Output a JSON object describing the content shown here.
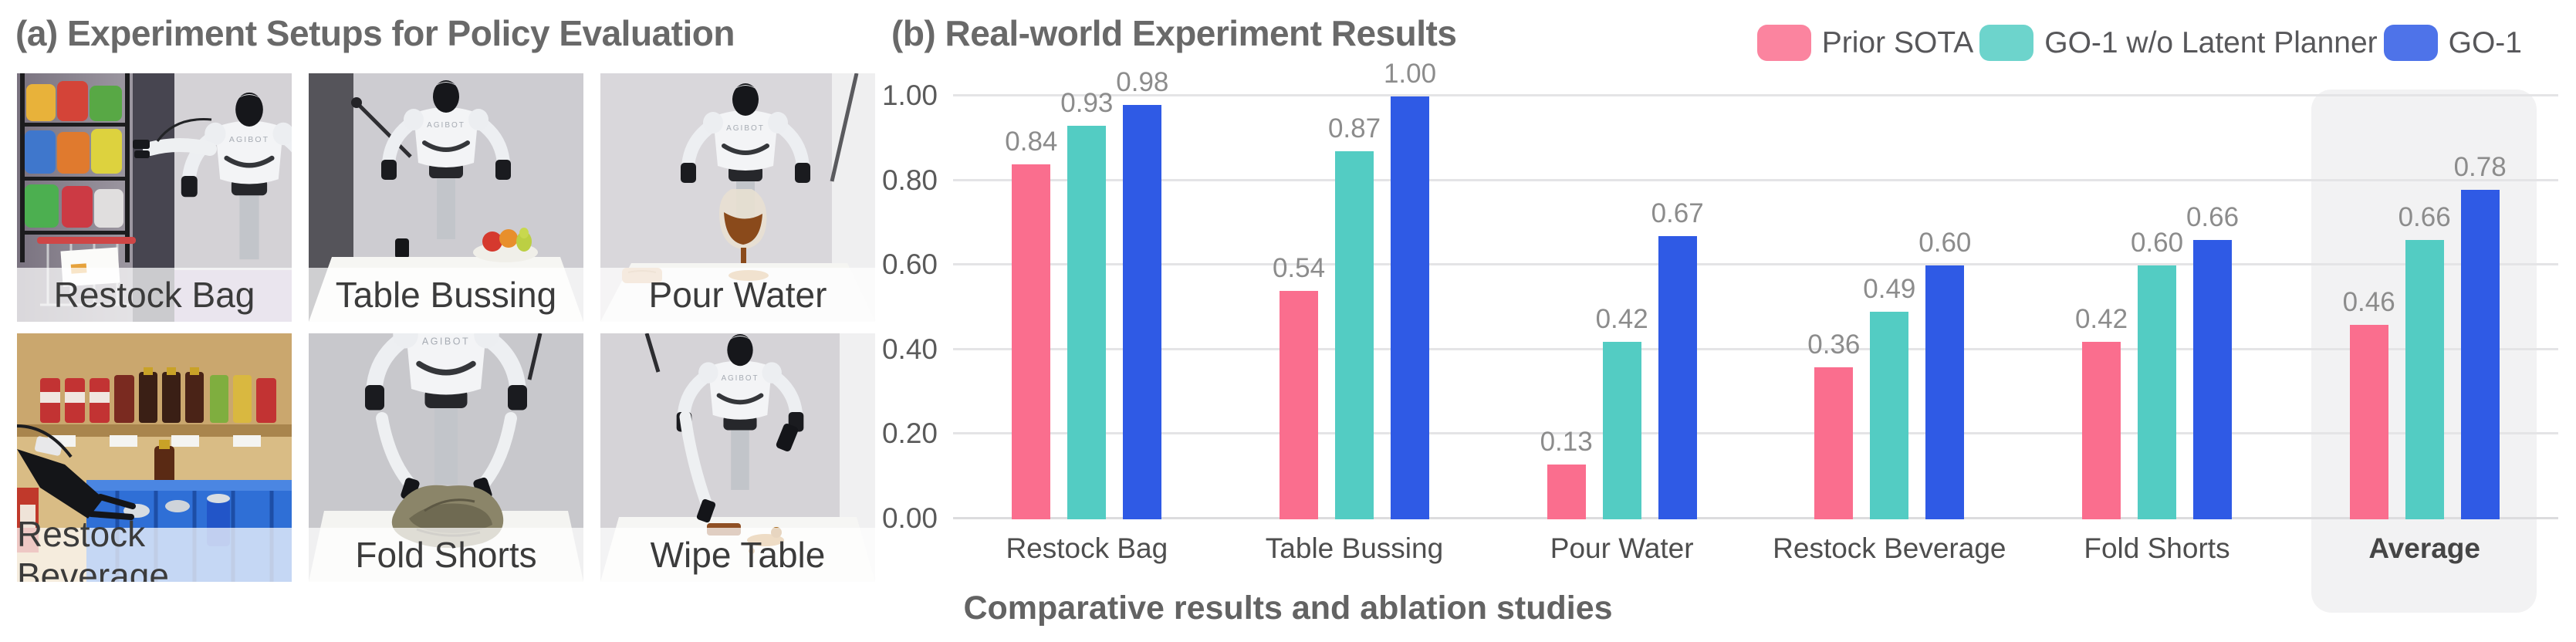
{
  "figure": {
    "panel_a_title": "(a) Experiment Setups for Policy Evaluation",
    "panel_b_title": "(b) Real-world Experiment Results",
    "caption": "Comparative results and ablation studies"
  },
  "setups": [
    {
      "label": "Restock Bag"
    },
    {
      "label": "Table Bussing"
    },
    {
      "label": "Pour Water"
    },
    {
      "label": "Restock Beverage"
    },
    {
      "label": "Fold Shorts"
    },
    {
      "label": "Wipe Table"
    }
  ],
  "chart_data": {
    "type": "bar",
    "title": "(b) Real-world Experiment Results",
    "categories": [
      "Restock Bag",
      "Table Bussing",
      "Pour Water",
      "Restock Beverage",
      "Fold Shorts",
      "Average"
    ],
    "series": [
      {
        "name": "Prior SOTA",
        "color": "#FA6E8E",
        "values": [
          0.84,
          0.54,
          0.13,
          0.36,
          0.42,
          0.46
        ]
      },
      {
        "name": "GO-1 w/o Latent Planner",
        "color": "#53CCC3",
        "values": [
          0.93,
          0.87,
          0.42,
          0.49,
          0.6,
          0.66
        ]
      },
      {
        "name": "GO-1",
        "color": "#2F5AE5",
        "values": [
          0.98,
          1.0,
          0.67,
          0.6,
          0.66,
          0.78
        ]
      }
    ],
    "ylabel": "",
    "xlabel": "",
    "ylim": [
      0.0,
      1.05
    ],
    "yticks": [
      0.0,
      0.2,
      0.4,
      0.6,
      0.8,
      1.0
    ],
    "grid": true,
    "legend_position": "top-right",
    "value_labels": true,
    "value_label_format": "0.00",
    "highlight_category": "Average",
    "highlight_color": "#f2f2f3"
  }
}
